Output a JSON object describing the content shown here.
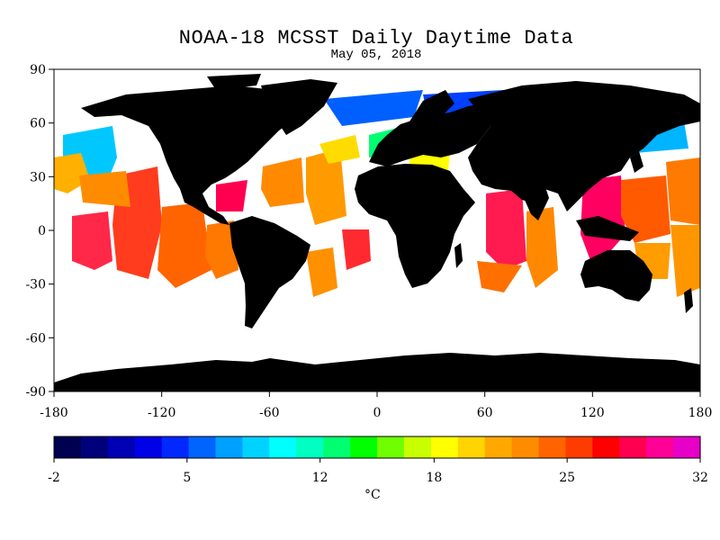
{
  "title": "NOAA-18 MCSST Daily Daytime Data",
  "subtitle": "May 05, 2018",
  "map": {
    "lon_range": [
      -180,
      180
    ],
    "lat_range": [
      -90,
      90
    ],
    "lon_ticks": [
      "-180",
      "-120",
      "-60",
      "0",
      "60",
      "120",
      "180"
    ],
    "lat_ticks": [
      "90",
      "60",
      "30",
      "0",
      "-30",
      "-60",
      "-90"
    ],
    "land_color": "#000000",
    "no_data_color": "#ffffff"
  },
  "colorbar": {
    "range": [
      -2,
      32
    ],
    "tick_labels": [
      "-2",
      "5",
      "12",
      "18",
      "25",
      "32"
    ],
    "unit": "°C",
    "colors": [
      "#000050",
      "#00007a",
      "#0000b4",
      "#0000e6",
      "#0028ff",
      "#0064ff",
      "#00a0ff",
      "#00d2ff",
      "#00ffff",
      "#00ffc0",
      "#00ff70",
      "#00ff00",
      "#70ff00",
      "#c8ff00",
      "#ffff00",
      "#ffd400",
      "#ffa800",
      "#ff8c00",
      "#ff6400",
      "#ff3c00",
      "#ff0000",
      "#ff0050",
      "#ff0096",
      "#e600c8"
    ]
  }
}
